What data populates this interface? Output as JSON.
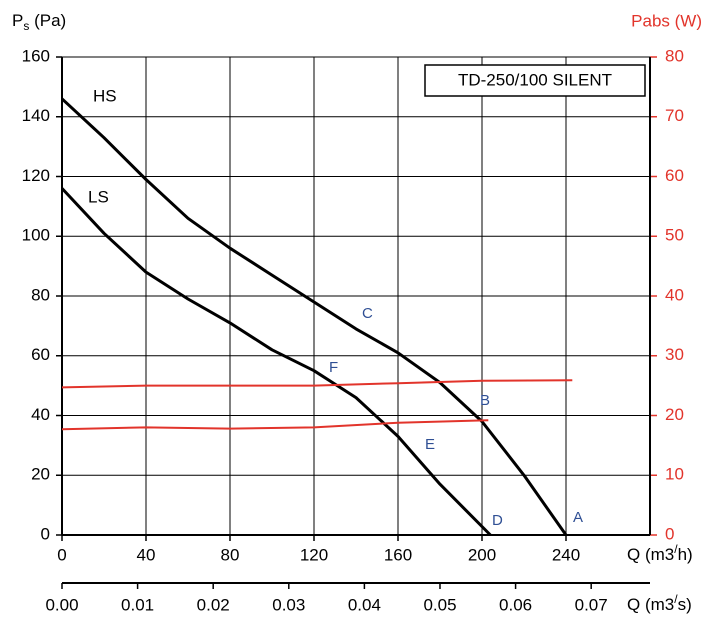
{
  "chart_data": {
    "type": "line",
    "title": "TD-250/100 SILENT",
    "x_label": "Q (m3/h)",
    "x2_label": "Q (m3/s)",
    "y_label": "Ps (Pa)",
    "y2_label": "Pabs (W)",
    "xlim": [
      0,
      280
    ],
    "xticks": [
      0,
      40,
      80,
      120,
      160,
      200,
      240
    ],
    "x2lim": [
      0,
      0.07778
    ],
    "x2ticks": [
      {
        "value": 0,
        "label": "0.00"
      },
      0.01,
      0.02,
      0.03,
      0.04,
      0.05,
      0.06,
      0.07
    ],
    "ylim": [
      0,
      160
    ],
    "yticks": [
      0,
      20,
      40,
      60,
      80,
      100,
      120,
      140,
      160
    ],
    "y2lim": [
      0,
      80
    ],
    "y2ticks": [
      0,
      10,
      20,
      30,
      40,
      50,
      60,
      70,
      80
    ],
    "grid": true,
    "series": [
      {
        "name": "HS",
        "color": "#000000",
        "x": [
          0,
          20,
          40,
          60,
          80,
          100,
          120,
          140,
          160,
          180,
          200,
          220,
          240
        ],
        "values": [
          146,
          133,
          119,
          106,
          96,
          87,
          78,
          69,
          61,
          51,
          38,
          20,
          0
        ]
      },
      {
        "name": "LS",
        "color": "#000000",
        "x": [
          0,
          20,
          40,
          60,
          80,
          100,
          120,
          140,
          160,
          180,
          204
        ],
        "values": [
          116,
          101,
          88,
          79,
          71,
          62,
          55,
          46,
          33,
          17,
          0
        ]
      },
      {
        "color": "#e2342b",
        "axis": "y2",
        "x": [
          0,
          40,
          80,
          120,
          160,
          200,
          243
        ],
        "values": [
          24.7,
          25,
          25,
          25,
          25.4,
          25.8,
          25.9
        ]
      },
      {
        "color": "#e2342b",
        "axis": "y2",
        "x": [
          0,
          40,
          80,
          120,
          160,
          203
        ],
        "values": [
          17.7,
          18,
          17.8,
          18,
          18.8,
          19.2
        ]
      }
    ],
    "annotations": [
      "A",
      "B",
      "C",
      "D",
      "E",
      "F"
    ]
  }
}
